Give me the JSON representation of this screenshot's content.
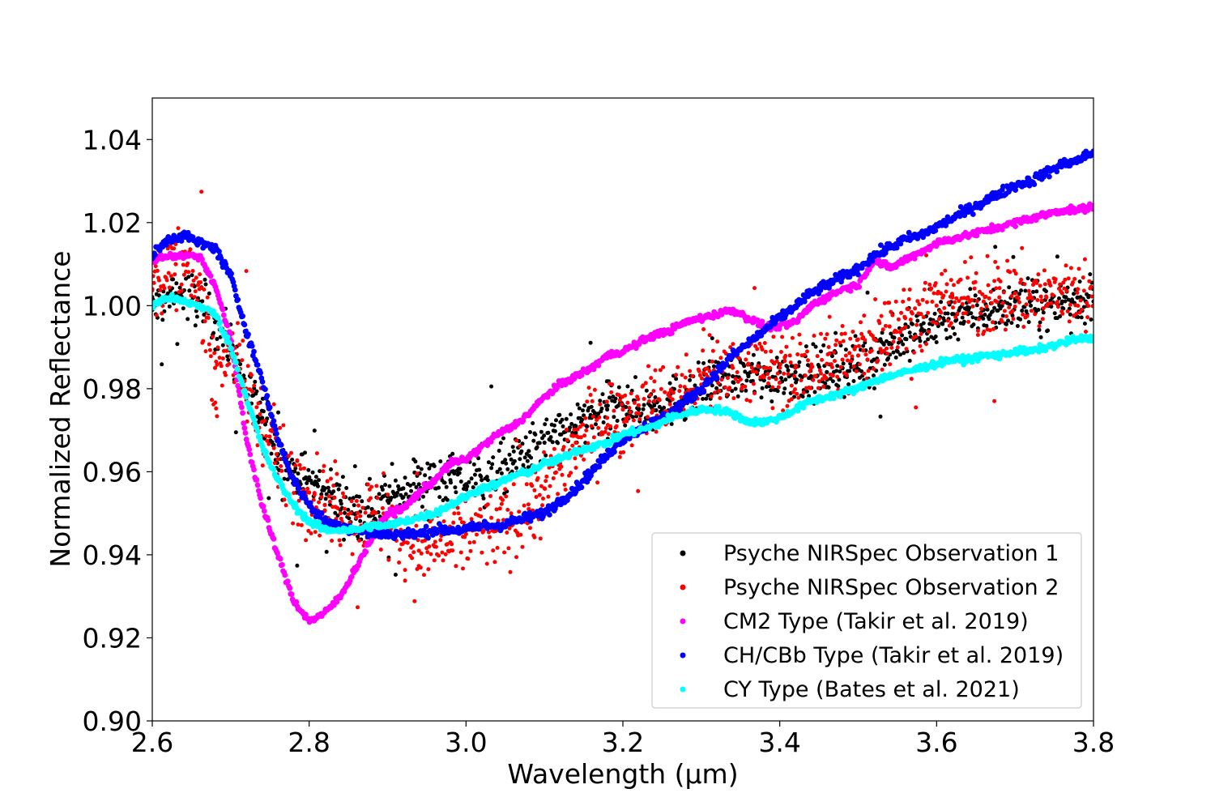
{
  "chart_data": {
    "type": "scatter",
    "title": "",
    "xlabel": "Wavelength (μm)",
    "ylabel": "Normalized Reflectance",
    "xlim": [
      2.6,
      3.8
    ],
    "ylim": [
      0.9,
      1.05
    ],
    "x_ticks": [
      2.6,
      2.8,
      3.0,
      3.2,
      3.4,
      3.6,
      3.8
    ],
    "x_tick_labels": [
      "2.6",
      "2.8",
      "3.0",
      "3.2",
      "3.4",
      "3.6",
      "3.8"
    ],
    "y_ticks": [
      0.9,
      0.92,
      0.94,
      0.96,
      0.98,
      1.0,
      1.02,
      1.04
    ],
    "y_tick_labels": [
      "0.90",
      "0.92",
      "0.94",
      "0.96",
      "0.98",
      "1.00",
      "1.02",
      "1.04"
    ],
    "grid": false,
    "legend_position": "lower-right",
    "series": [
      {
        "name": "Psyche NIRSpec Observation 1",
        "color": "#000000",
        "style": "noisy-scatter",
        "noise": 0.006,
        "density": 1,
        "x": [
          2.6,
          2.63,
          2.66,
          2.68,
          2.7,
          2.72,
          2.74,
          2.76,
          2.78,
          2.8,
          2.82,
          2.84,
          2.86,
          2.88,
          2.9,
          2.92,
          2.94,
          2.96,
          2.98,
          3.0,
          3.02,
          3.04,
          3.06,
          3.08,
          3.1,
          3.12,
          3.14,
          3.16,
          3.18,
          3.2,
          3.22,
          3.24,
          3.26,
          3.28,
          3.3,
          3.32,
          3.34,
          3.36,
          3.38,
          3.4,
          3.42,
          3.44,
          3.46,
          3.48,
          3.5,
          3.52,
          3.54,
          3.56,
          3.58,
          3.6,
          3.62,
          3.64,
          3.66,
          3.68,
          3.7,
          3.72,
          3.74,
          3.76,
          3.78,
          3.8
        ],
        "y": [
          0.999,
          1.003,
          1.001,
          0.996,
          0.99,
          0.98,
          0.973,
          0.964,
          0.96,
          0.958,
          0.956,
          0.953,
          0.95,
          0.951,
          0.953,
          0.956,
          0.957,
          0.958,
          0.958,
          0.957,
          0.958,
          0.96,
          0.962,
          0.965,
          0.967,
          0.969,
          0.971,
          0.973,
          0.975,
          0.976,
          0.975,
          0.976,
          0.977,
          0.978,
          0.98,
          0.982,
          0.983,
          0.983,
          0.982,
          0.984,
          0.984,
          0.983,
          0.984,
          0.985,
          0.986,
          0.987,
          0.991,
          0.992,
          0.994,
          0.996,
          0.998,
          0.998,
          0.999,
          1.0,
          1.001,
          1.0,
          1.0,
          1.001,
          1.002,
          1.001
        ]
      },
      {
        "name": "Psyche NIRSpec Observation 2",
        "color": "#ff0000",
        "style": "noisy-scatter",
        "noise": 0.009,
        "density": 1,
        "x": [
          2.6,
          2.63,
          2.66,
          2.68,
          2.7,
          2.72,
          2.74,
          2.76,
          2.78,
          2.8,
          2.82,
          2.84,
          2.86,
          2.88,
          2.9,
          2.92,
          2.94,
          2.96,
          2.98,
          3.0,
          3.02,
          3.04,
          3.06,
          3.08,
          3.1,
          3.12,
          3.14,
          3.16,
          3.18,
          3.2,
          3.22,
          3.24,
          3.26,
          3.28,
          3.3,
          3.32,
          3.34,
          3.36,
          3.38,
          3.4,
          3.42,
          3.44,
          3.46,
          3.48,
          3.5,
          3.52,
          3.54,
          3.56,
          3.58,
          3.6,
          3.62,
          3.64,
          3.66,
          3.68,
          3.7,
          3.72,
          3.74,
          3.76,
          3.78,
          3.8
        ],
        "y": [
          1.004,
          1.01,
          1.004,
          0.985,
          0.99,
          0.98,
          0.972,
          0.963,
          0.958,
          0.955,
          0.952,
          0.95,
          0.949,
          0.95,
          0.948,
          0.944,
          0.941,
          0.942,
          0.943,
          0.945,
          0.946,
          0.946,
          0.948,
          0.951,
          0.956,
          0.962,
          0.967,
          0.971,
          0.973,
          0.975,
          0.976,
          0.977,
          0.978,
          0.979,
          0.981,
          0.983,
          0.985,
          0.986,
          0.985,
          0.985,
          0.985,
          0.985,
          0.986,
          0.987,
          0.988,
          0.992,
          0.995,
          0.997,
          0.998,
          1.0,
          1.002,
          1.002,
          1.001,
          1.002,
          1.003,
          1.002,
          1.002,
          1.003,
          1.004,
          1.0
        ]
      },
      {
        "name": "CM2 Type (Takir et al. 2019)",
        "color": "#ff00ff",
        "style": "dense-line",
        "noise": 0.0008,
        "density": 4,
        "x": [
          2.6,
          2.62,
          2.64,
          2.66,
          2.68,
          2.7,
          2.72,
          2.74,
          2.76,
          2.78,
          2.8,
          2.82,
          2.84,
          2.86,
          2.88,
          2.9,
          2.92,
          2.94,
          2.96,
          2.98,
          3.0,
          3.02,
          3.04,
          3.06,
          3.08,
          3.1,
          3.12,
          3.14,
          3.16,
          3.18,
          3.2,
          3.22,
          3.24,
          3.26,
          3.28,
          3.3,
          3.32,
          3.34,
          3.36,
          3.38,
          3.4,
          3.42,
          3.44,
          3.46,
          3.48,
          3.5,
          3.52,
          3.54,
          3.56,
          3.58,
          3.6,
          3.62,
          3.64,
          3.66,
          3.68,
          3.7,
          3.72,
          3.74,
          3.76,
          3.78,
          3.8
        ],
        "y": [
          1.011,
          1.012,
          1.012,
          1.012,
          1.005,
          0.992,
          0.968,
          0.952,
          0.94,
          0.929,
          0.924,
          0.926,
          0.93,
          0.937,
          0.944,
          0.95,
          0.951,
          0.955,
          0.958,
          0.962,
          0.963,
          0.966,
          0.969,
          0.971,
          0.974,
          0.978,
          0.981,
          0.983,
          0.985,
          0.988,
          0.989,
          0.991,
          0.993,
          0.994,
          0.996,
          0.997,
          0.998,
          0.999,
          0.997,
          0.995,
          0.995,
          0.996,
          1.0,
          1.002,
          1.004,
          1.005,
          1.011,
          1.009,
          1.011,
          1.013,
          1.015,
          1.016,
          1.017,
          1.018,
          1.019,
          1.02,
          1.021,
          1.022,
          1.023,
          1.023,
          1.024
        ]
      },
      {
        "name": "CH/CBb Type (Takir et al. 2019)",
        "color": "#0000ff",
        "style": "dense-line",
        "noise": 0.0012,
        "density": 4,
        "x": [
          2.6,
          2.62,
          2.64,
          2.66,
          2.68,
          2.7,
          2.72,
          2.74,
          2.76,
          2.78,
          2.8,
          2.82,
          2.84,
          2.86,
          2.88,
          2.9,
          2.92,
          2.94,
          2.96,
          2.98,
          3.0,
          3.02,
          3.04,
          3.06,
          3.08,
          3.1,
          3.12,
          3.14,
          3.16,
          3.18,
          3.2,
          3.22,
          3.24,
          3.26,
          3.28,
          3.3,
          3.32,
          3.34,
          3.36,
          3.38,
          3.4,
          3.42,
          3.44,
          3.46,
          3.48,
          3.5,
          3.52,
          3.54,
          3.56,
          3.58,
          3.6,
          3.62,
          3.64,
          3.66,
          3.68,
          3.7,
          3.72,
          3.74,
          3.76,
          3.78,
          3.8
        ],
        "y": [
          1.012,
          1.016,
          1.017,
          1.015,
          1.014,
          1.007,
          0.994,
          0.982,
          0.968,
          0.958,
          0.952,
          0.948,
          0.947,
          0.946,
          0.945,
          0.945,
          0.945,
          0.945,
          0.946,
          0.946,
          0.946,
          0.947,
          0.947,
          0.948,
          0.949,
          0.95,
          0.953,
          0.956,
          0.96,
          0.964,
          0.968,
          0.97,
          0.972,
          0.974,
          0.977,
          0.98,
          0.984,
          0.988,
          0.991,
          0.994,
          0.997,
          1.0,
          1.003,
          1.005,
          1.007,
          1.009,
          1.012,
          1.014,
          1.016,
          1.017,
          1.019,
          1.021,
          1.023,
          1.025,
          1.027,
          1.029,
          1.03,
          1.032,
          1.034,
          1.035,
          1.037
        ]
      },
      {
        "name": "CY Type (Bates et al. 2021)",
        "color": "#00ffff",
        "style": "dense-line",
        "noise": 0.0008,
        "density": 4,
        "x": [
          2.6,
          2.62,
          2.64,
          2.66,
          2.68,
          2.7,
          2.72,
          2.74,
          2.76,
          2.78,
          2.8,
          2.82,
          2.84,
          2.86,
          2.88,
          2.9,
          2.92,
          2.94,
          2.96,
          2.98,
          3.0,
          3.02,
          3.04,
          3.06,
          3.08,
          3.1,
          3.12,
          3.14,
          3.16,
          3.18,
          3.2,
          3.22,
          3.24,
          3.26,
          3.28,
          3.3,
          3.32,
          3.34,
          3.36,
          3.38,
          3.4,
          3.42,
          3.44,
          3.46,
          3.48,
          3.5,
          3.52,
          3.54,
          3.56,
          3.58,
          3.6,
          3.62,
          3.64,
          3.66,
          3.68,
          3.7,
          3.72,
          3.74,
          3.76,
          3.78,
          3.8
        ],
        "y": [
          1.0,
          1.002,
          1.001,
          1.0,
          0.998,
          0.99,
          0.978,
          0.966,
          0.958,
          0.952,
          0.948,
          0.946,
          0.946,
          0.946,
          0.947,
          0.947,
          0.948,
          0.949,
          0.95,
          0.952,
          0.954,
          0.956,
          0.957,
          0.959,
          0.96,
          0.962,
          0.963,
          0.965,
          0.966,
          0.967,
          0.969,
          0.97,
          0.971,
          0.973,
          0.974,
          0.975,
          0.975,
          0.974,
          0.972,
          0.972,
          0.973,
          0.975,
          0.977,
          0.978,
          0.979,
          0.98,
          0.982,
          0.983,
          0.984,
          0.985,
          0.986,
          0.987,
          0.987,
          0.988,
          0.988,
          0.989,
          0.989,
          0.99,
          0.991,
          0.992,
          0.992
        ]
      }
    ]
  }
}
